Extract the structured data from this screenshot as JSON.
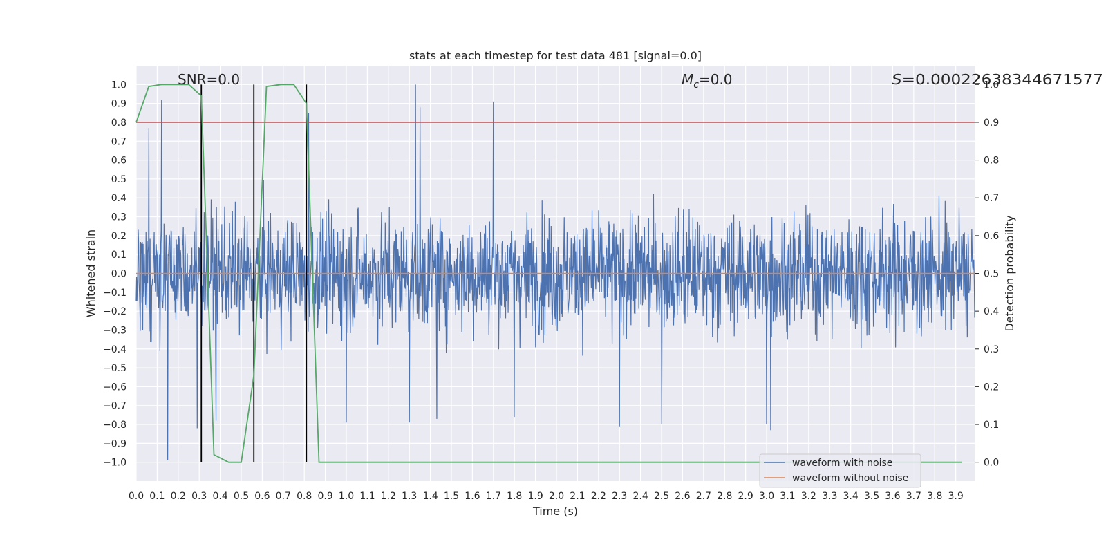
{
  "chart_data": {
    "type": "line",
    "title": "stats at each timestep for test data 481 [signal=0.0]",
    "xlabel": "Time (s)",
    "ylabel": "Whitened strain",
    "y2label": "Detection probability",
    "xlim": [
      0.0,
      3.99
    ],
    "ylim": [
      -1.1,
      1.1
    ],
    "y2lim": [
      -0.05,
      1.05
    ],
    "x_ticks": [
      "0.0",
      "0.1",
      "0.2",
      "0.3",
      "0.4",
      "0.5",
      "0.6",
      "0.7",
      "0.8",
      "0.9",
      "1.0",
      "1.1",
      "1.2",
      "1.3",
      "1.4",
      "1.5",
      "1.6",
      "1.7",
      "1.8",
      "1.9",
      "2.0",
      "2.1",
      "2.2",
      "2.3",
      "2.4",
      "2.5",
      "2.6",
      "2.7",
      "2.8",
      "2.9",
      "3.0",
      "3.1",
      "3.2",
      "3.3",
      "3.4",
      "3.5",
      "3.6",
      "3.7",
      "3.8",
      "3.9"
    ],
    "y_ticks": [
      "1.0",
      "0.9",
      "0.8",
      "0.7",
      "0.6",
      "0.5",
      "0.4",
      "0.3",
      "0.2",
      "0.1",
      "0.0",
      "−0.1",
      "−0.2",
      "−0.3",
      "−0.4",
      "−0.5",
      "−0.6",
      "−0.7",
      "−0.8",
      "−0.9",
      "−1.0"
    ],
    "y2_ticks": [
      "1.0",
      "0.9",
      "0.8",
      "0.7",
      "0.6",
      "0.5",
      "0.4",
      "0.3",
      "0.2",
      "0.1",
      "0.0"
    ],
    "grid": true,
    "legend_position": "lower right",
    "annotations": {
      "snr": "SNR=0.0",
      "mc_symbol": "M",
      "mc_sub": "c",
      "mc_value": "=0.0",
      "s_symbol": "S",
      "s_value": "=0.00022638344671577"
    },
    "series": [
      {
        "name": "waveform with noise",
        "color": "#4c72b0",
        "kind": "noise",
        "x_start": 0.0,
        "x_end": 3.99,
        "typical_amplitude": 0.35,
        "peaks": [
          {
            "x": 0.06,
            "y": 0.77
          },
          {
            "x": 0.12,
            "y": 0.92
          },
          {
            "x": 0.15,
            "y": -0.99
          },
          {
            "x": 0.29,
            "y": -0.82
          },
          {
            "x": 0.38,
            "y": -0.78
          },
          {
            "x": 0.82,
            "y": 0.85
          },
          {
            "x": 1.0,
            "y": -0.79
          },
          {
            "x": 1.3,
            "y": -0.79
          },
          {
            "x": 1.33,
            "y": 1.0
          },
          {
            "x": 1.35,
            "y": 0.88
          },
          {
            "x": 1.43,
            "y": -0.77
          },
          {
            "x": 1.7,
            "y": 0.91
          },
          {
            "x": 1.8,
            "y": -0.76
          },
          {
            "x": 2.3,
            "y": -0.81
          },
          {
            "x": 2.5,
            "y": -0.8
          },
          {
            "x": 3.0,
            "y": -0.8
          },
          {
            "x": 3.02,
            "y": -0.83
          }
        ]
      },
      {
        "name": "waveform without noise",
        "color": "#dd8452",
        "kind": "flat",
        "y": 0.0
      },
      {
        "name": "detection probability",
        "color": "#55a868",
        "axis": "right",
        "x": [
          0.0,
          0.06,
          0.12,
          0.19,
          0.25,
          0.31,
          0.37,
          0.44,
          0.5,
          0.56,
          0.62,
          0.69,
          0.75,
          0.81,
          0.87,
          0.94,
          1.0,
          3.93
        ],
        "y": [
          0.9,
          0.995,
          1.0,
          1.0,
          1.0,
          0.97,
          0.02,
          0.0,
          0.0,
          0.23,
          0.995,
          1.0,
          1.0,
          0.95,
          0.0,
          0.0,
          0.0,
          0.0
        ]
      }
    ],
    "threshold": {
      "value": 0.9,
      "axis": "right",
      "color": "#c44e52"
    },
    "vlines": {
      "x": [
        0.31,
        0.56,
        0.81
      ],
      "y_from": -1.0,
      "y_to": 1.0,
      "color": "#000000"
    }
  }
}
